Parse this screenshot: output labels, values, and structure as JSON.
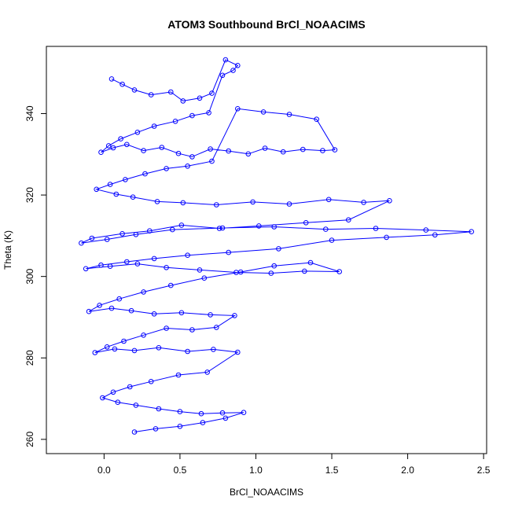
{
  "chart_data": {
    "type": "scatter",
    "title": "ATOM3 Southbound BrCl_NOAACIMS",
    "xlabel": "BrCl_NOAACIMS",
    "ylabel": "Theta (K)",
    "xlim": [
      -0.38,
      2.52
    ],
    "ylim": [
      256.5,
      356.5
    ],
    "xticks": [
      0.0,
      0.5,
      1.0,
      1.5,
      2.0,
      2.5
    ],
    "xtick_labels": [
      "0.0",
      "0.5",
      "1.0",
      "1.5",
      "2.0",
      "2.5"
    ],
    "yticks": [
      260,
      280,
      300,
      320,
      340
    ],
    "ytick_labels": [
      "260",
      "280",
      "300",
      "320",
      "340"
    ],
    "grid": false,
    "marker": "open-circle",
    "connected": true,
    "series_color": "#0000ff",
    "series": [
      {
        "x": [
          0.05,
          0.12,
          0.2,
          0.31,
          0.44,
          0.52,
          0.63,
          0.71,
          0.8,
          0.88,
          0.85,
          0.78,
          0.69,
          0.58,
          0.47,
          0.33,
          0.22,
          0.11,
          0.03,
          -0.02,
          0.06,
          0.15,
          0.26,
          0.38,
          0.49,
          0.58,
          0.7,
          0.82,
          0.95,
          1.06,
          1.18,
          1.31,
          1.44,
          1.52,
          1.4,
          1.22,
          1.05,
          0.88,
          0.71,
          0.55,
          0.41,
          0.27,
          0.14,
          0.04,
          -0.05,
          0.08,
          0.19,
          0.35,
          0.52,
          0.74,
          0.98,
          1.22,
          1.48,
          1.71,
          1.88,
          1.61,
          1.33,
          1.02,
          0.76,
          0.51,
          0.3,
          0.12,
          -0.08,
          -0.15,
          0.02,
          0.21,
          0.45,
          0.78,
          1.12,
          1.46,
          1.79,
          2.12,
          2.42,
          2.18,
          1.86,
          1.5,
          1.15,
          0.82,
          0.55,
          0.33,
          0.15,
          -0.02,
          -0.12,
          0.04,
          0.22,
          0.41,
          0.63,
          0.87,
          1.1,
          1.32,
          1.55,
          1.36,
          1.12,
          0.9,
          0.66,
          0.44,
          0.26,
          0.1,
          -0.03,
          -0.1,
          0.05,
          0.18,
          0.33,
          0.51,
          0.7,
          0.86,
          0.74,
          0.58,
          0.41,
          0.26,
          0.13,
          0.02,
          -0.06,
          0.07,
          0.2,
          0.36,
          0.55,
          0.72,
          0.88,
          0.68,
          0.49,
          0.31,
          0.17,
          0.06,
          -0.01,
          0.09,
          0.21,
          0.36,
          0.5,
          0.64,
          0.78,
          0.92,
          0.8,
          0.65,
          0.5,
          0.34,
          0.2
        ],
        "y": [
          348.5,
          347.2,
          345.8,
          344.6,
          345.3,
          343.1,
          343.8,
          345.0,
          353.2,
          351.8,
          350.6,
          349.4,
          340.2,
          339.5,
          338.1,
          336.9,
          335.4,
          333.8,
          332.1,
          330.5,
          331.6,
          332.4,
          330.9,
          331.7,
          330.2,
          329.4,
          331.3,
          330.8,
          330.1,
          331.5,
          330.6,
          331.2,
          330.9,
          331.1,
          338.6,
          339.8,
          340.4,
          341.2,
          328.3,
          327.1,
          326.5,
          325.2,
          323.8,
          322.6,
          321.4,
          320.2,
          319.5,
          318.4,
          318.1,
          317.6,
          318.3,
          317.8,
          318.9,
          318.2,
          318.6,
          313.9,
          313.2,
          312.4,
          311.8,
          312.6,
          311.2,
          310.5,
          309.4,
          308.2,
          309.1,
          310.3,
          311.5,
          311.9,
          312.2,
          311.6,
          311.8,
          311.4,
          311.0,
          310.2,
          309.6,
          308.9,
          306.8,
          305.9,
          305.2,
          304.4,
          303.6,
          302.8,
          301.9,
          302.5,
          303.1,
          302.2,
          301.6,
          301.0,
          300.8,
          301.3,
          301.2,
          303.4,
          302.6,
          301.1,
          299.6,
          297.8,
          296.2,
          294.5,
          292.9,
          291.4,
          292.2,
          291.6,
          290.8,
          291.1,
          290.6,
          290.4,
          287.5,
          286.9,
          287.3,
          285.6,
          284.1,
          282.7,
          281.3,
          282.2,
          281.8,
          282.5,
          281.6,
          282.1,
          281.4,
          276.5,
          275.8,
          274.2,
          272.9,
          271.6,
          270.2,
          269.1,
          268.4,
          267.5,
          266.8,
          266.3,
          266.5,
          266.6,
          265.2,
          264.1,
          263.2,
          262.6,
          261.8
        ]
      }
    ]
  }
}
